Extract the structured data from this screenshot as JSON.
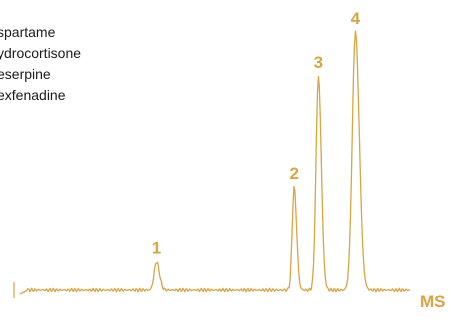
{
  "chart_data": {
    "type": "line",
    "trace_label": "MS",
    "line_color": "#d9a441",
    "legend": [
      "spartame",
      "ydrocortisone",
      "eserpine",
      "exfenadine"
    ],
    "peaks": [
      {
        "label": "1",
        "x": 0.35,
        "height": 0.11
      },
      {
        "label": "2",
        "x": 0.703,
        "height": 0.4
      },
      {
        "label": "3",
        "x": 0.765,
        "height": 0.83
      },
      {
        "label": "4",
        "x": 0.86,
        "height": 1.0
      }
    ]
  }
}
